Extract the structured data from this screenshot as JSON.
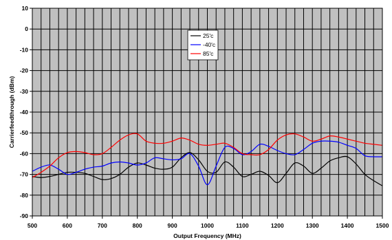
{
  "chart_data": {
    "type": "line",
    "title": "",
    "xlabel": "Output Frequency (MHz)",
    "ylabel": "Carrierfeedthrough (dBm)",
    "xlim": [
      500,
      1500
    ],
    "ylim": [
      -90,
      10
    ],
    "x_ticks": [
      500,
      600,
      700,
      800,
      900,
      1000,
      1100,
      1200,
      1300,
      1400,
      1500
    ],
    "y_ticks": [
      10,
      0,
      -10,
      -20,
      -30,
      -40,
      -50,
      -60,
      -70,
      -80,
      -90
    ],
    "x_minor_step": 25,
    "grid": true,
    "plot_background": "#c0c0c0",
    "legend_position": "top-center",
    "series": [
      {
        "name": "25'c",
        "color": "#000000",
        "x": [
          500,
          525,
          550,
          575,
          600,
          625,
          650,
          675,
          700,
          725,
          750,
          775,
          800,
          825,
          850,
          875,
          900,
          925,
          950,
          975,
          1000,
          1025,
          1050,
          1075,
          1100,
          1125,
          1150,
          1175,
          1200,
          1225,
          1250,
          1275,
          1300,
          1325,
          1350,
          1375,
          1400,
          1425,
          1450,
          1475,
          1500
        ],
        "y": [
          -71,
          -71.5,
          -71,
          -70,
          -69,
          -69,
          -69.5,
          -71,
          -72.5,
          -72,
          -70,
          -66.5,
          -64.5,
          -65.5,
          -67,
          -67.5,
          -66.5,
          -62,
          -59.5,
          -63,
          -68.5,
          -69,
          -64,
          -66.5,
          -71,
          -70,
          -68.5,
          -70.5,
          -74,
          -69.5,
          -64.5,
          -66,
          -69.5,
          -67,
          -63.5,
          -62,
          -61.5,
          -65,
          -70,
          -73,
          -75.5
        ]
      },
      {
        "name": "-40'c",
        "color": "#0000ff",
        "x": [
          500,
          525,
          550,
          575,
          600,
          625,
          650,
          675,
          700,
          725,
          750,
          775,
          800,
          825,
          850,
          875,
          900,
          925,
          950,
          975,
          1000,
          1025,
          1050,
          1075,
          1100,
          1125,
          1150,
          1175,
          1200,
          1225,
          1250,
          1275,
          1300,
          1325,
          1350,
          1375,
          1400,
          1425,
          1450,
          1475,
          1500
        ],
        "y": [
          -68.5,
          -66.5,
          -65.5,
          -67.5,
          -70,
          -69,
          -67.5,
          -66.5,
          -66,
          -64.5,
          -64,
          -64.5,
          -65.5,
          -64.5,
          -62,
          -62.5,
          -63,
          -62.5,
          -60,
          -66,
          -75,
          -66,
          -57,
          -57.5,
          -60.5,
          -59,
          -55.5,
          -56.5,
          -58.5,
          -60,
          -60.5,
          -58,
          -55,
          -54,
          -54,
          -54.5,
          -56,
          -57.5,
          -61,
          -61.5,
          -61.5
        ]
      },
      {
        "name": "85'c",
        "color": "#ff0000",
        "x": [
          500,
          525,
          550,
          575,
          600,
          625,
          650,
          675,
          700,
          725,
          750,
          775,
          800,
          825,
          850,
          875,
          900,
          925,
          950,
          975,
          1000,
          1025,
          1050,
          1075,
          1100,
          1125,
          1150,
          1175,
          1200,
          1225,
          1250,
          1275,
          1300,
          1325,
          1350,
          1375,
          1400,
          1425,
          1450,
          1475,
          1500
        ],
        "y": [
          -71.5,
          -69,
          -66,
          -62,
          -59.5,
          -59,
          -59.5,
          -60.5,
          -60,
          -57,
          -53.5,
          -51,
          -50.5,
          -54,
          -55,
          -55,
          -54,
          -52.5,
          -53.5,
          -55.5,
          -56,
          -55.5,
          -55,
          -57,
          -60,
          -60.5,
          -60.5,
          -58,
          -53.5,
          -51,
          -50.5,
          -52,
          -54,
          -53,
          -51.5,
          -52,
          -53,
          -54,
          -55,
          -55.5,
          -56
        ]
      }
    ]
  }
}
